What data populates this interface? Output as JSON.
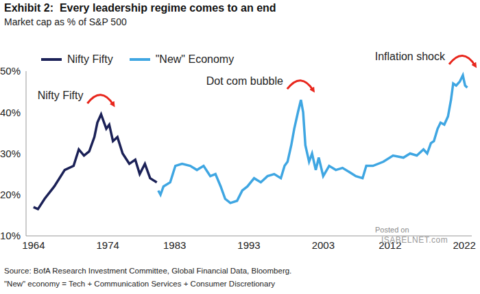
{
  "chart_data": {
    "type": "line",
    "title": "Exhibit 2:  Every leadership regime comes to an end",
    "subtitle": "Market cap as % of S&P 500",
    "xlim": [
      1963,
      2023
    ],
    "xticks": [
      1964,
      1974,
      1983,
      1993,
      2003,
      2012,
      2022
    ],
    "ylim": [
      10,
      50
    ],
    "yticks": [
      {
        "value": 10,
        "label": "10%"
      },
      {
        "value": 20,
        "label": "20%"
      },
      {
        "value": 30,
        "label": "30%"
      },
      {
        "value": 40,
        "label": "40%"
      },
      {
        "value": 50,
        "label": "50%"
      }
    ],
    "grid": false,
    "legend": "top left",
    "series": [
      {
        "name": "Nifty Fifty",
        "color": "#1b2157",
        "x": [
          1964.0,
          1964.6,
          1965.5,
          1966.8,
          1968.2,
          1969.4,
          1970.1,
          1970.8,
          1971.5,
          1972.2,
          1972.6,
          1973.1,
          1973.8,
          1974.2,
          1974.7,
          1975.3,
          1976.0,
          1976.9,
          1977.7,
          1978.3,
          1979.0,
          1979.7,
          1980.6
        ],
        "values": [
          17,
          16.5,
          19,
          22,
          26,
          27,
          31,
          29.5,
          30.5,
          34,
          37.5,
          39.5,
          36,
          37,
          33,
          34,
          30,
          27.5,
          28.5,
          25,
          27.5,
          24,
          23
        ]
      },
      {
        "name": "\"New\" Economy",
        "color": "#3fa6e2",
        "x": [
          1980.8,
          1981.1,
          1981.5,
          1982.4,
          1983.1,
          1984.0,
          1985.1,
          1986.0,
          1986.9,
          1987.8,
          1988.5,
          1989.2,
          1989.8,
          1990.5,
          1991.4,
          1992.1,
          1992.8,
          1993.7,
          1994.6,
          1995.5,
          1996.4,
          1997.3,
          1997.8,
          1998.2,
          1998.7,
          1999.1,
          1999.6,
          2000.0,
          2000.3,
          2000.6,
          2001.1,
          2001.5,
          2002.0,
          2002.4,
          2003.0,
          2003.8,
          2004.7,
          2005.6,
          2006.5,
          2007.4,
          2008.3,
          2008.8,
          2009.7,
          2011.1,
          2012.4,
          2013.8,
          2014.7,
          2015.6,
          2016.5,
          2017.0,
          2017.5,
          2017.9,
          2018.4,
          2018.8,
          2019.3,
          2019.8,
          2020.2,
          2020.5,
          2020.9,
          2021.4,
          2021.8,
          2022.1,
          2022.4
        ],
        "values": [
          21,
          20,
          22,
          23,
          27,
          27.5,
          27,
          26,
          27,
          24.5,
          25,
          22,
          19,
          18,
          18.5,
          21,
          22,
          24,
          23,
          24.5,
          25,
          24,
          27,
          28,
          32,
          36,
          40,
          43,
          40,
          32,
          28,
          30,
          26,
          29,
          24.5,
          27,
          26,
          26.5,
          25.5,
          24.5,
          24,
          27,
          27,
          28,
          29.5,
          29,
          30,
          29.5,
          31,
          30,
          32.5,
          33,
          36,
          37.5,
          37,
          39,
          43,
          47,
          46.5,
          47.5,
          49,
          46.5,
          46
        ]
      }
    ],
    "annotations": [
      {
        "text": "Nifty Fifty",
        "x": 1973.1,
        "y": 39.5
      },
      {
        "text": "Dot com bubble",
        "x": 2000.0,
        "y": 43
      },
      {
        "text": "Inflation shock",
        "x": 2021.8,
        "y": 49
      }
    ],
    "notes": [
      "Source: BofA Research Investment Committee, Global Financial Data, Bloomberg.",
      "\"New\" economy = Tech + Communication Services + Consumer Discretionary"
    ],
    "watermark": [
      "Posted on",
      "ISABELNET.com"
    ]
  }
}
